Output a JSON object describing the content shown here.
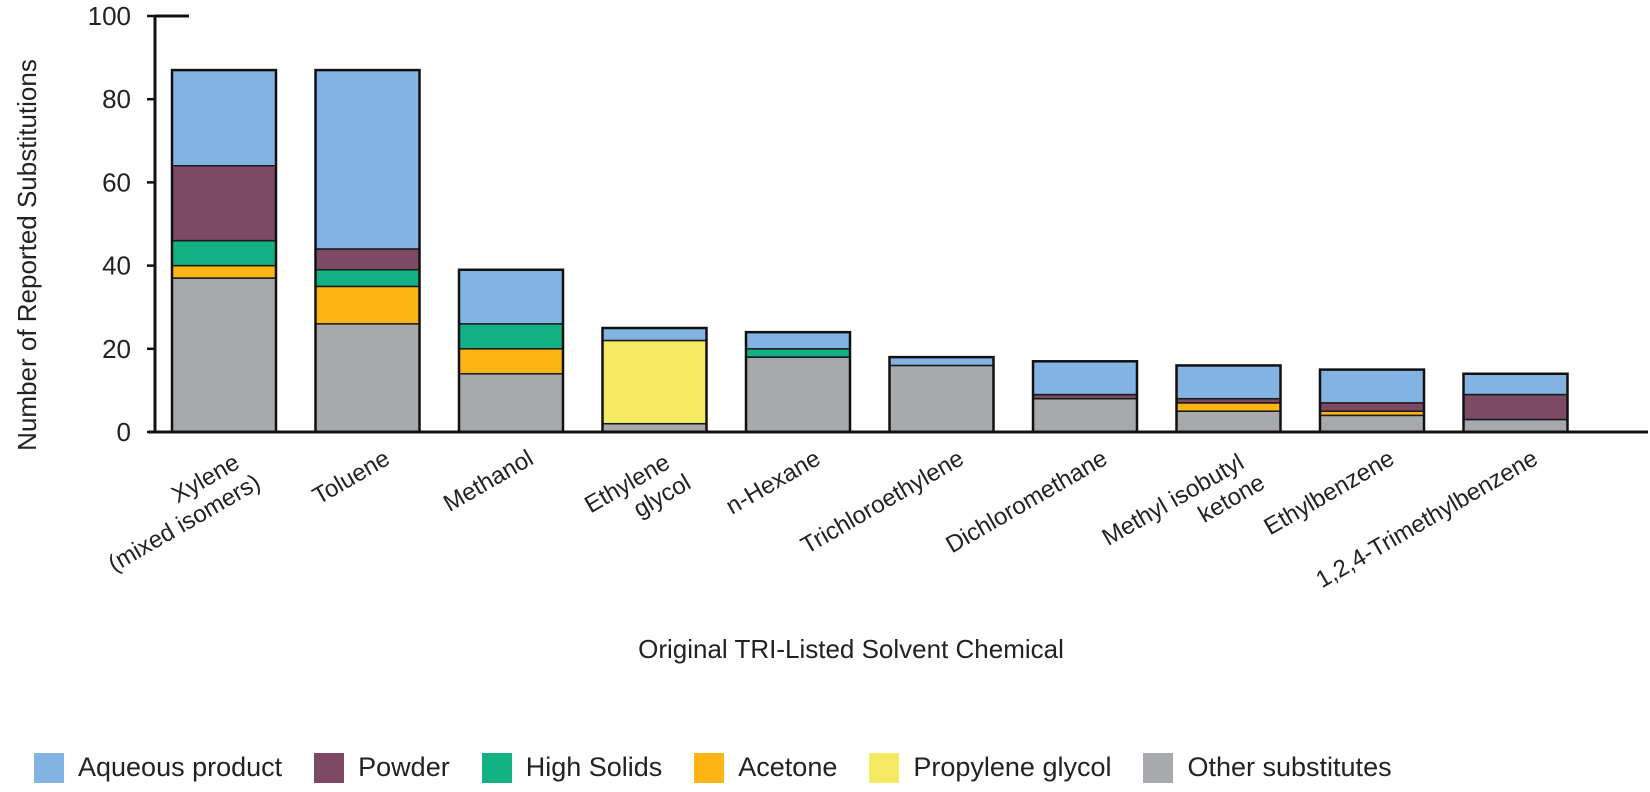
{
  "chart_data": {
    "type": "bar",
    "stacked": true,
    "title": "",
    "xlabel": "Original TRI-Listed Solvent Chemical",
    "ylabel": "Number of Reported Substitutions",
    "ylim": [
      0,
      100
    ],
    "yticks": [
      "0",
      "20",
      "40",
      "60",
      "80",
      "100"
    ],
    "grid": false,
    "legend_position": "bottom",
    "categories": [
      [
        "Xylene",
        "(mixed isomers)"
      ],
      [
        "Toluene"
      ],
      [
        "Methanol"
      ],
      [
        "Ethylene",
        "glycol"
      ],
      [
        "n-Hexane"
      ],
      [
        "Trichloroethylene"
      ],
      [
        "Dichloromethane"
      ],
      [
        "Methyl isobutyl",
        "ketone"
      ],
      [
        "Ethylbenzene"
      ],
      [
        "1,2,4-Trimethylbenzene"
      ]
    ],
    "series": [
      {
        "name": "Other substitutes",
        "color": "#a7a9ac",
        "values": [
          37,
          26,
          14,
          2,
          18,
          16,
          8,
          5,
          4,
          3
        ]
      },
      {
        "name": "Propylene glycol",
        "color": "#f5ea61",
        "values": [
          0,
          0,
          0,
          20,
          0,
          0,
          0,
          0,
          0,
          0
        ]
      },
      {
        "name": "Acetone",
        "color": "#fdb515",
        "values": [
          3,
          9,
          6,
          0,
          0,
          0,
          0,
          2,
          1,
          0
        ]
      },
      {
        "name": "High Solids",
        "color": "#13b083",
        "values": [
          6,
          4,
          6,
          0,
          2,
          0,
          0,
          0,
          0,
          0
        ]
      },
      {
        "name": "Powder",
        "color": "#7c4a65",
        "values": [
          18,
          5,
          0,
          0,
          0,
          0,
          1,
          1,
          2,
          6
        ]
      },
      {
        "name": "Aqueous product",
        "color": "#83b3e3",
        "values": [
          23,
          43,
          13,
          3,
          4,
          2,
          8,
          8,
          8,
          5
        ]
      }
    ],
    "legend_order": [
      "Aqueous product",
      "Powder",
      "High Solids",
      "Acetone",
      "Propylene glycol",
      "Other substitutes"
    ]
  }
}
